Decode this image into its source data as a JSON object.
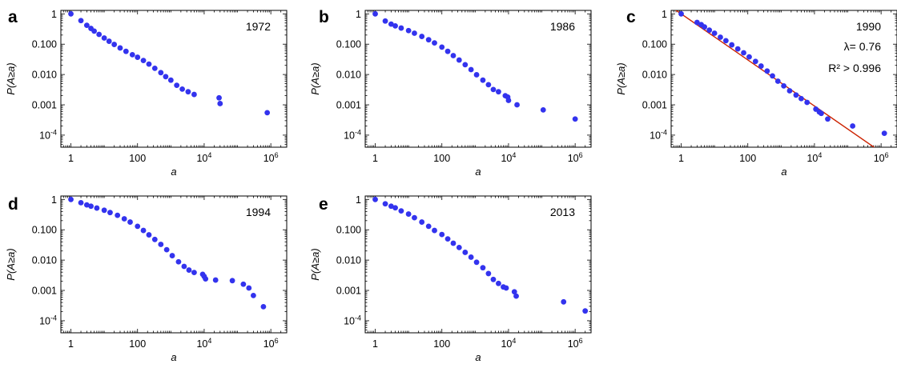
{
  "chart_data": [
    {
      "type": "scatter",
      "panel": "a",
      "year": "1972",
      "xlabel": "a",
      "ylabel": "P(A≥a)",
      "x_scale": "log",
      "y_scale": "log",
      "xlim": [
        0.5,
        3000000
      ],
      "ylim": [
        4e-05,
        1.3
      ],
      "x_ticks": [
        1,
        100,
        10000,
        1000000
      ],
      "x_tick_labels": [
        "1",
        "100",
        "10^4",
        "10^6"
      ],
      "y_ticks": [
        1,
        0.1,
        0.01,
        0.001,
        0.0001
      ],
      "y_tick_labels": [
        "1",
        "0.100",
        "0.010",
        "0.001",
        "10^-4"
      ],
      "marker_color": "#3333ee",
      "points": [
        [
          1,
          1
        ],
        [
          2,
          0.6
        ],
        [
          3,
          0.42
        ],
        [
          4,
          0.33
        ],
        [
          5,
          0.27
        ],
        [
          7,
          0.21
        ],
        [
          10,
          0.16
        ],
        [
          14,
          0.125
        ],
        [
          20,
          0.098
        ],
        [
          30,
          0.075
        ],
        [
          45,
          0.058
        ],
        [
          70,
          0.045
        ],
        [
          100,
          0.037
        ],
        [
          150,
          0.029
        ],
        [
          220,
          0.022
        ],
        [
          330,
          0.016
        ],
        [
          500,
          0.0115
        ],
        [
          700,
          0.0085
        ],
        [
          1000,
          0.0065
        ],
        [
          1500,
          0.0044
        ],
        [
          2200,
          0.0033
        ],
        [
          3300,
          0.0027
        ],
        [
          5000,
          0.0022
        ],
        [
          28000,
          0.0017
        ],
        [
          30000,
          0.0011
        ],
        [
          780000,
          0.00055
        ]
      ]
    },
    {
      "type": "scatter",
      "panel": "b",
      "year": "1986",
      "xlabel": "a",
      "ylabel": "P(A≥a)",
      "x_scale": "log",
      "y_scale": "log",
      "xlim": [
        0.5,
        3000000
      ],
      "ylim": [
        4e-05,
        1.3
      ],
      "x_ticks": [
        1,
        100,
        10000,
        1000000
      ],
      "x_tick_labels": [
        "1",
        "100",
        "10^4",
        "10^6"
      ],
      "y_ticks": [
        1,
        0.1,
        0.01,
        0.001,
        0.0001
      ],
      "y_tick_labels": [
        "1",
        "0.100",
        "0.010",
        "0.001",
        "10^-4"
      ],
      "marker_color": "#3333ee",
      "points": [
        [
          1,
          1
        ],
        [
          2,
          0.58
        ],
        [
          3,
          0.46
        ],
        [
          4,
          0.4
        ],
        [
          6,
          0.34
        ],
        [
          10,
          0.28
        ],
        [
          15,
          0.23
        ],
        [
          25,
          0.18
        ],
        [
          40,
          0.14
        ],
        [
          60,
          0.11
        ],
        [
          100,
          0.08
        ],
        [
          150,
          0.058
        ],
        [
          220,
          0.042
        ],
        [
          330,
          0.03
        ],
        [
          500,
          0.021
        ],
        [
          750,
          0.0145
        ],
        [
          1100,
          0.0098
        ],
        [
          1700,
          0.0065
        ],
        [
          2500,
          0.0046
        ],
        [
          3500,
          0.0032
        ],
        [
          5000,
          0.0027
        ],
        [
          8000,
          0.002
        ],
        [
          9500,
          0.0018
        ],
        [
          10000,
          0.0014
        ],
        [
          18000,
          0.001
        ],
        [
          110000,
          0.00068
        ],
        [
          1000000,
          0.00034
        ]
      ]
    },
    {
      "type": "scatter",
      "panel": "c",
      "year": "1990",
      "fit_lambda_text": "λ= 0.76",
      "fit_r2_text": "R² > 0.996",
      "fit_lambda": 0.76,
      "xlabel": "a",
      "ylabel": "P(A≥a)",
      "x_scale": "log",
      "y_scale": "log",
      "xlim": [
        0.5,
        3000000
      ],
      "ylim": [
        4e-05,
        1.3
      ],
      "x_ticks": [
        1,
        100,
        10000,
        1000000
      ],
      "x_tick_labels": [
        "1",
        "100",
        "10^4",
        "10^6"
      ],
      "y_ticks": [
        1,
        0.1,
        0.01,
        0.001,
        0.0001
      ],
      "y_tick_labels": [
        "1",
        "0.100",
        "0.010",
        "0.001",
        "10^-4"
      ],
      "marker_color": "#3333ee",
      "fit_color": "#cc2200",
      "points": [
        [
          1,
          1
        ],
        [
          3,
          0.52
        ],
        [
          4,
          0.44
        ],
        [
          5,
          0.37
        ],
        [
          7,
          0.29
        ],
        [
          10,
          0.23
        ],
        [
          15,
          0.17
        ],
        [
          22,
          0.13
        ],
        [
          33,
          0.095
        ],
        [
          50,
          0.07
        ],
        [
          75,
          0.052
        ],
        [
          110,
          0.038
        ],
        [
          170,
          0.027
        ],
        [
          250,
          0.019
        ],
        [
          380,
          0.013
        ],
        [
          550,
          0.009
        ],
        [
          800,
          0.006
        ],
        [
          1200,
          0.0042
        ],
        [
          1800,
          0.0029
        ],
        [
          2800,
          0.0021
        ],
        [
          4000,
          0.0016
        ],
        [
          6000,
          0.0012
        ],
        [
          11000,
          0.00072
        ],
        [
          14000,
          0.00058
        ],
        [
          16000,
          0.00052
        ],
        [
          25000,
          0.00034
        ],
        [
          140000,
          0.0002
        ],
        [
          1250000,
          0.000115
        ]
      ]
    },
    {
      "type": "scatter",
      "panel": "d",
      "year": "1994",
      "xlabel": "a",
      "ylabel": "P(A≥a)",
      "x_scale": "log",
      "y_scale": "log",
      "xlim": [
        0.5,
        3000000
      ],
      "ylim": [
        4e-05,
        1.3
      ],
      "x_ticks": [
        1,
        100,
        10000,
        1000000
      ],
      "x_tick_labels": [
        "1",
        "100",
        "10^4",
        "10^6"
      ],
      "y_ticks": [
        1,
        0.1,
        0.01,
        0.001,
        0.0001
      ],
      "y_tick_labels": [
        "1",
        "0.100",
        "0.010",
        "0.001",
        "10^-4"
      ],
      "marker_color": "#3333ee",
      "points": [
        [
          1,
          1
        ],
        [
          2,
          0.78
        ],
        [
          3,
          0.66
        ],
        [
          4,
          0.6
        ],
        [
          6,
          0.52
        ],
        [
          10,
          0.44
        ],
        [
          15,
          0.37
        ],
        [
          25,
          0.3
        ],
        [
          40,
          0.23
        ],
        [
          60,
          0.18
        ],
        [
          100,
          0.13
        ],
        [
          150,
          0.095
        ],
        [
          220,
          0.068
        ],
        [
          330,
          0.048
        ],
        [
          500,
          0.033
        ],
        [
          750,
          0.022
        ],
        [
          1100,
          0.014
        ],
        [
          1700,
          0.0088
        ],
        [
          2500,
          0.0062
        ],
        [
          3500,
          0.0047
        ],
        [
          5000,
          0.0039
        ],
        [
          9000,
          0.0034
        ],
        [
          10000,
          0.0029
        ],
        [
          11000,
          0.0024
        ],
        [
          22000,
          0.0022
        ],
        [
          70000,
          0.0021
        ],
        [
          150000,
          0.0016
        ],
        [
          220000,
          0.0012
        ],
        [
          300000,
          0.00068
        ],
        [
          600000,
          0.00029
        ]
      ]
    },
    {
      "type": "scatter",
      "panel": "e",
      "year": "2013",
      "xlabel": "a",
      "ylabel": "P(A≥a)",
      "x_scale": "log",
      "y_scale": "log",
      "xlim": [
        0.5,
        3000000
      ],
      "ylim": [
        4e-05,
        1.3
      ],
      "x_ticks": [
        1,
        100,
        10000,
        1000000
      ],
      "x_tick_labels": [
        "1",
        "100",
        "10^4",
        "10^6"
      ],
      "y_ticks": [
        1,
        0.1,
        0.01,
        0.001,
        0.0001
      ],
      "y_tick_labels": [
        "1",
        "0.100",
        "0.010",
        "0.001",
        "10^-4"
      ],
      "marker_color": "#3333ee",
      "points": [
        [
          1,
          1
        ],
        [
          2,
          0.72
        ],
        [
          3,
          0.6
        ],
        [
          4,
          0.53
        ],
        [
          6,
          0.42
        ],
        [
          10,
          0.33
        ],
        [
          15,
          0.25
        ],
        [
          25,
          0.18
        ],
        [
          40,
          0.13
        ],
        [
          60,
          0.095
        ],
        [
          100,
          0.07
        ],
        [
          150,
          0.05
        ],
        [
          220,
          0.036
        ],
        [
          330,
          0.026
        ],
        [
          500,
          0.018
        ],
        [
          750,
          0.0125
        ],
        [
          1100,
          0.0085
        ],
        [
          1700,
          0.0056
        ],
        [
          2500,
          0.0036
        ],
        [
          3500,
          0.0023
        ],
        [
          5000,
          0.0017
        ],
        [
          7000,
          0.0013
        ],
        [
          8500,
          0.0012
        ],
        [
          15000,
          0.0009
        ],
        [
          17000,
          0.00065
        ],
        [
          450000,
          0.00042
        ],
        [
          2000000,
          0.00021
        ]
      ]
    }
  ]
}
